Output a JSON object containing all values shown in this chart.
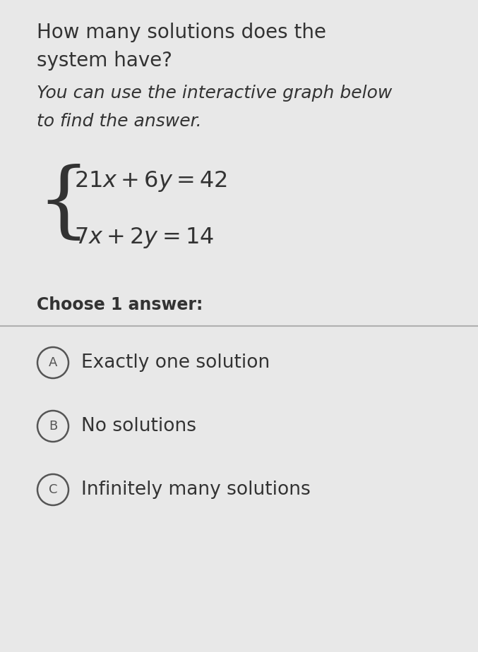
{
  "bg_color": "#e8e8e8",
  "title_line1": "How many solutions does the",
  "title_line2": "system have?",
  "subtitle_line1": "You can use the interactive graph below",
  "subtitle_line2": "to find the answer.",
  "eq1": "$21x + 6y = 42$",
  "eq2": "$7x + 2y = 14$",
  "choose_label": "Choose 1 answer:",
  "options": [
    "Exactly one solution",
    "No solutions",
    "Infinitely many solutions"
  ],
  "option_labels": [
    "A",
    "B",
    "C"
  ],
  "divider_color": "#b0b0b0",
  "text_color": "#333333",
  "circle_color": "#555555",
  "title_fontsize": 20,
  "subtitle_fontsize": 18,
  "eq_fontsize": 23,
  "choose_fontsize": 17,
  "option_fontsize": 19,
  "fig_width": 6.77,
  "fig_height": 9.24,
  "dpi": 100
}
